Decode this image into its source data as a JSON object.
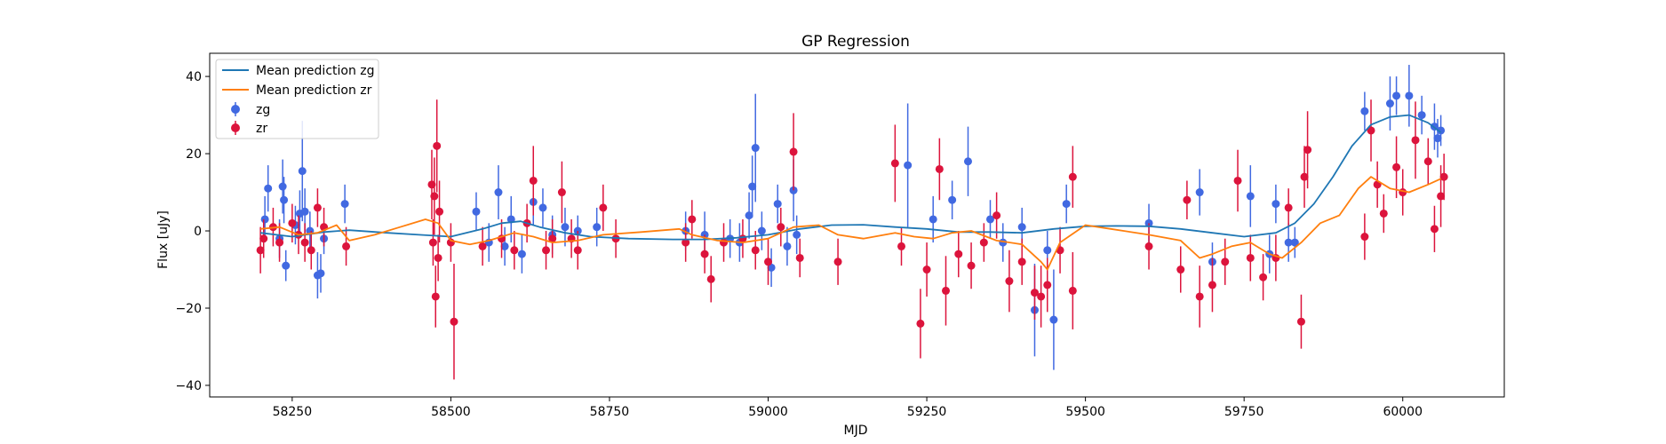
{
  "chart_data": {
    "type": "scatter",
    "title": "GP Regression",
    "xlabel": "MJD",
    "ylabel": "Flux [uJy]",
    "xlim": [
      58120,
      60160
    ],
    "ylim": [
      -43,
      46
    ],
    "xticks": [
      58250,
      58500,
      58750,
      59000,
      59250,
      59500,
      59750,
      60000
    ],
    "yticks": [
      -40,
      -20,
      0,
      20,
      40
    ],
    "legend_position": "top-left",
    "grid": false,
    "lines": [
      {
        "name": "Mean prediction zg",
        "color": "#1f77b4",
        "points": [
          [
            58200,
            -0.5
          ],
          [
            58250,
            -1.5
          ],
          [
            58300,
            -0.3
          ],
          [
            58340,
            0.2
          ],
          [
            58400,
            -0.5
          ],
          [
            58450,
            -1.0
          ],
          [
            58500,
            -1.5
          ],
          [
            58550,
            0.5
          ],
          [
            58580,
            2.0
          ],
          [
            58610,
            2.5
          ],
          [
            58640,
            1.0
          ],
          [
            58680,
            -0.5
          ],
          [
            58720,
            -1.5
          ],
          [
            58780,
            -2.0
          ],
          [
            58850,
            -2.2
          ],
          [
            58900,
            -2.2
          ],
          [
            58950,
            -1.8
          ],
          [
            59000,
            -1.0
          ],
          [
            59050,
            0.5
          ],
          [
            59100,
            1.5
          ],
          [
            59150,
            1.6
          ],
          [
            59200,
            1.0
          ],
          [
            59250,
            0.5
          ],
          [
            59300,
            -0.3
          ],
          [
            59350,
            -0.3
          ],
          [
            59400,
            -0.5
          ],
          [
            59450,
            0.5
          ],
          [
            59500,
            1.2
          ],
          [
            59550,
            1.3
          ],
          [
            59600,
            1.2
          ],
          [
            59650,
            0.5
          ],
          [
            59700,
            -0.5
          ],
          [
            59750,
            -1.5
          ],
          [
            59800,
            -0.5
          ],
          [
            59830,
            2.0
          ],
          [
            59860,
            7.0
          ],
          [
            59890,
            14.0
          ],
          [
            59920,
            22.0
          ],
          [
            59950,
            27.5
          ],
          [
            59980,
            29.5
          ],
          [
            60010,
            30.0
          ],
          [
            60040,
            28.0
          ],
          [
            60060,
            25.5
          ]
        ]
      },
      {
        "name": "Mean prediction zr",
        "color": "#ff7f0e",
        "points": [
          [
            58200,
            0.5
          ],
          [
            58230,
            1.0
          ],
          [
            58260,
            -1.0
          ],
          [
            58290,
            -0.5
          ],
          [
            58320,
            1.5
          ],
          [
            58340,
            -2.5
          ],
          [
            58380,
            -1.0
          ],
          [
            58420,
            1.0
          ],
          [
            58460,
            3.0
          ],
          [
            58480,
            2.0
          ],
          [
            58500,
            -2.5
          ],
          [
            58530,
            -3.5
          ],
          [
            58560,
            -2.5
          ],
          [
            58600,
            -0.5
          ],
          [
            58630,
            -1.5
          ],
          [
            58660,
            -3.0
          ],
          [
            58700,
            -2.5
          ],
          [
            58740,
            -1.0
          ],
          [
            58800,
            -0.3
          ],
          [
            58860,
            0.5
          ],
          [
            58880,
            -1.0
          ],
          [
            58920,
            -2.5
          ],
          [
            58960,
            -3.0
          ],
          [
            59000,
            -2.0
          ],
          [
            59040,
            1.0
          ],
          [
            59080,
            1.5
          ],
          [
            59110,
            -1.0
          ],
          [
            59150,
            -2.0
          ],
          [
            59200,
            -0.5
          ],
          [
            59230,
            -1.5
          ],
          [
            59260,
            -2.0
          ],
          [
            59290,
            -0.5
          ],
          [
            59320,
            0.0
          ],
          [
            59360,
            -2.5
          ],
          [
            59400,
            -3.5
          ],
          [
            59430,
            -8.0
          ],
          [
            59440,
            -10.0
          ],
          [
            59460,
            -3.0
          ],
          [
            59500,
            1.5
          ],
          [
            59540,
            0.5
          ],
          [
            59600,
            -1.0
          ],
          [
            59650,
            -2.5
          ],
          [
            59680,
            -7.0
          ],
          [
            59700,
            -6.0
          ],
          [
            59730,
            -4.0
          ],
          [
            59760,
            -3.0
          ],
          [
            59790,
            -6.0
          ],
          [
            59810,
            -7.0
          ],
          [
            59840,
            -3.0
          ],
          [
            59870,
            2.0
          ],
          [
            59900,
            4.0
          ],
          [
            59930,
            11.0
          ],
          [
            59950,
            14.0
          ],
          [
            59980,
            11.0
          ],
          [
            60010,
            10.0
          ],
          [
            60040,
            12.0
          ],
          [
            60060,
            13.5
          ]
        ]
      }
    ],
    "series": [
      {
        "name": "zg",
        "color": "#4169e1",
        "points": [
          [
            58207,
            3,
            6
          ],
          [
            58212,
            11,
            6
          ],
          [
            58230,
            -2,
            5
          ],
          [
            58235,
            11.5,
            7
          ],
          [
            58237,
            8,
            6
          ],
          [
            58240,
            -9,
            4
          ],
          [
            58255,
            1.5,
            5
          ],
          [
            58262,
            4.5,
            6
          ],
          [
            58266,
            15.5,
            13
          ],
          [
            58270,
            5,
            6
          ],
          [
            58278,
            0,
            5
          ],
          [
            58290,
            -11.5,
            6
          ],
          [
            58295,
            -11,
            5
          ],
          [
            58300,
            -2,
            4
          ],
          [
            58333,
            7,
            5
          ],
          [
            58540,
            5,
            5
          ],
          [
            58560,
            -3,
            5
          ],
          [
            58575,
            10,
            7
          ],
          [
            58585,
            -4,
            5
          ],
          [
            58595,
            3,
            6
          ],
          [
            58612,
            -6,
            5
          ],
          [
            58630,
            7.5,
            6
          ],
          [
            58645,
            6,
            5
          ],
          [
            58660,
            -1,
            5
          ],
          [
            58680,
            1,
            5
          ],
          [
            58700,
            0,
            4
          ],
          [
            58730,
            1,
            5
          ],
          [
            58870,
            0,
            5
          ],
          [
            58900,
            -1,
            6
          ],
          [
            58940,
            -2,
            5
          ],
          [
            58955,
            -3,
            5
          ],
          [
            58970,
            4,
            6
          ],
          [
            58975,
            11.5,
            8
          ],
          [
            58980,
            21.5,
            14
          ],
          [
            58990,
            0,
            5
          ],
          [
            59005,
            -9.5,
            5
          ],
          [
            59015,
            7,
            5
          ],
          [
            59030,
            -4,
            5
          ],
          [
            59040,
            10.5,
            8
          ],
          [
            59045,
            -1,
            5
          ],
          [
            59220,
            17,
            16
          ],
          [
            59260,
            3,
            6
          ],
          [
            59290,
            8,
            5
          ],
          [
            59315,
            18,
            9
          ],
          [
            59350,
            3,
            5
          ],
          [
            59370,
            -3,
            5
          ],
          [
            59400,
            1,
            5
          ],
          [
            59420,
            -20.5,
            12
          ],
          [
            59440,
            -5,
            5
          ],
          [
            59450,
            -23,
            13
          ],
          [
            59470,
            7,
            5
          ],
          [
            59600,
            2,
            5
          ],
          [
            59680,
            10,
            6
          ],
          [
            59700,
            -8,
            5
          ],
          [
            59760,
            9,
            8
          ],
          [
            59790,
            -6,
            5
          ],
          [
            59800,
            7,
            5
          ],
          [
            59820,
            -3,
            5
          ],
          [
            59830,
            -3,
            4
          ],
          [
            59940,
            31,
            5
          ],
          [
            59980,
            33,
            7
          ],
          [
            59990,
            35,
            5
          ],
          [
            60010,
            35,
            8
          ],
          [
            60030,
            30,
            5
          ],
          [
            60050,
            27,
            6
          ],
          [
            60055,
            24,
            5
          ],
          [
            60060,
            26,
            4
          ]
        ]
      },
      {
        "name": "zr",
        "color": "#dc143c",
        "points": [
          [
            58200,
            -5,
            6
          ],
          [
            58205,
            -2,
            5
          ],
          [
            58220,
            1,
            5
          ],
          [
            58230,
            -3,
            5
          ],
          [
            58250,
            2,
            5
          ],
          [
            58260,
            -1,
            5
          ],
          [
            58270,
            -3,
            5
          ],
          [
            58280,
            -5,
            5
          ],
          [
            58290,
            6,
            5
          ],
          [
            58300,
            1,
            5
          ],
          [
            58335,
            -4,
            5
          ],
          [
            58470,
            12,
            9
          ],
          [
            58472,
            -3,
            6
          ],
          [
            58474,
            9,
            10
          ],
          [
            58476,
            -17,
            8
          ],
          [
            58478,
            22,
            12
          ],
          [
            58480,
            -7,
            6
          ],
          [
            58482,
            5,
            8
          ],
          [
            58500,
            -3,
            5
          ],
          [
            58505,
            -23.5,
            15
          ],
          [
            58550,
            -4,
            5
          ],
          [
            58580,
            -2,
            5
          ],
          [
            58600,
            -5,
            5
          ],
          [
            58620,
            2,
            5
          ],
          [
            58630,
            13,
            9
          ],
          [
            58650,
            -5,
            5
          ],
          [
            58660,
            -2,
            5
          ],
          [
            58675,
            10,
            8
          ],
          [
            58690,
            -2,
            5
          ],
          [
            58700,
            -5,
            5
          ],
          [
            58740,
            6,
            6
          ],
          [
            58760,
            -2,
            5
          ],
          [
            58870,
            -3,
            5
          ],
          [
            58880,
            3,
            5
          ],
          [
            58900,
            -6,
            5
          ],
          [
            58910,
            -12.5,
            6
          ],
          [
            58930,
            -3,
            5
          ],
          [
            58960,
            -2,
            5
          ],
          [
            58980,
            -5,
            5
          ],
          [
            59000,
            -8,
            6
          ],
          [
            59020,
            1,
            5
          ],
          [
            59040,
            20.5,
            10
          ],
          [
            59050,
            -7,
            5
          ],
          [
            59110,
            -8,
            6
          ],
          [
            59200,
            17.5,
            10
          ],
          [
            59210,
            -4,
            5
          ],
          [
            59240,
            -24,
            9
          ],
          [
            59250,
            -10,
            7
          ],
          [
            59270,
            16,
            8
          ],
          [
            59280,
            -15.5,
            9
          ],
          [
            59300,
            -6,
            6
          ],
          [
            59320,
            -9,
            6
          ],
          [
            59340,
            -3,
            5
          ],
          [
            59360,
            4,
            6
          ],
          [
            59380,
            -13,
            8
          ],
          [
            59400,
            -8,
            6
          ],
          [
            59420,
            -16,
            7
          ],
          [
            59430,
            -17,
            8
          ],
          [
            59440,
            -14,
            7
          ],
          [
            59460,
            -5,
            6
          ],
          [
            59480,
            14,
            8
          ],
          [
            59480,
            -15.5,
            10
          ],
          [
            59600,
            -4,
            6
          ],
          [
            59650,
            -10,
            6
          ],
          [
            59660,
            8,
            5
          ],
          [
            59680,
            -17,
            8
          ],
          [
            59700,
            -14,
            7
          ],
          [
            59720,
            -8,
            6
          ],
          [
            59740,
            13,
            8
          ],
          [
            59760,
            -7,
            6
          ],
          [
            59780,
            -12,
            6
          ],
          [
            59800,
            -7,
            6
          ],
          [
            59820,
            6,
            5
          ],
          [
            59840,
            -23.5,
            7
          ],
          [
            59845,
            14,
            8
          ],
          [
            59850,
            21,
            10
          ],
          [
            59940,
            -1.5,
            6
          ],
          [
            59950,
            26,
            8
          ],
          [
            59960,
            12,
            6
          ],
          [
            59970,
            4.5,
            5
          ],
          [
            59990,
            16.5,
            8
          ],
          [
            60000,
            10,
            6
          ],
          [
            60020,
            23.5,
            10
          ],
          [
            60040,
            18,
            6
          ],
          [
            60050,
            0.5,
            6
          ],
          [
            60060,
            9,
            8
          ],
          [
            60065,
            14,
            6
          ]
        ]
      }
    ]
  }
}
